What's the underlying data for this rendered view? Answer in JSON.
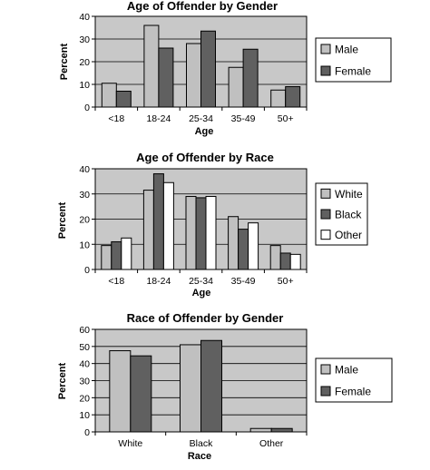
{
  "chart_data": [
    {
      "type": "bar",
      "title": "Age of Offender by Gender",
      "xlabel": "Age",
      "ylabel": "Percent",
      "ylim": [
        0,
        40
      ],
      "yticks": [
        0,
        10,
        20,
        30,
        40
      ],
      "grid": true,
      "legend_position": "right",
      "categories": [
        "<18",
        "18-24",
        "25-34",
        "35-49",
        "50+"
      ],
      "series": [
        {
          "name": "Male",
          "color": "#c0c0c0",
          "values": [
            10.5,
            36,
            28,
            17.5,
            7.5
          ]
        },
        {
          "name": "Female",
          "color": "#606060",
          "values": [
            7,
            26,
            33.5,
            25.5,
            9
          ]
        }
      ]
    },
    {
      "type": "bar",
      "title": "Age of Offender by Race",
      "xlabel": "Age",
      "ylabel": "Percent",
      "ylim": [
        0,
        40
      ],
      "yticks": [
        0,
        10,
        20,
        30,
        40
      ],
      "grid": true,
      "legend_position": "right",
      "categories": [
        "<18",
        "18-24",
        "25-34",
        "35-49",
        "50+"
      ],
      "series": [
        {
          "name": "White",
          "color": "#c0c0c0",
          "values": [
            9.5,
            31.5,
            29,
            21,
            9.5
          ]
        },
        {
          "name": "Black",
          "color": "#606060",
          "values": [
            11,
            38,
            28.5,
            16,
            6.5
          ]
        },
        {
          "name": "Other",
          "color": "#ffffff",
          "values": [
            12.5,
            34.5,
            29,
            18.5,
            6
          ]
        }
      ]
    },
    {
      "type": "bar",
      "title": "Race of Offender by Gender",
      "xlabel": "Race",
      "ylabel": "Percent",
      "ylim": [
        0,
        60
      ],
      "yticks": [
        0,
        10,
        20,
        30,
        40,
        50,
        60
      ],
      "grid": true,
      "legend_position": "right",
      "categories": [
        "White",
        "Black",
        "Other"
      ],
      "series": [
        {
          "name": "Male",
          "color": "#c0c0c0",
          "values": [
            47.5,
            51,
            2
          ]
        },
        {
          "name": "Female",
          "color": "#606060",
          "values": [
            44.5,
            53.5,
            2
          ]
        }
      ]
    }
  ]
}
